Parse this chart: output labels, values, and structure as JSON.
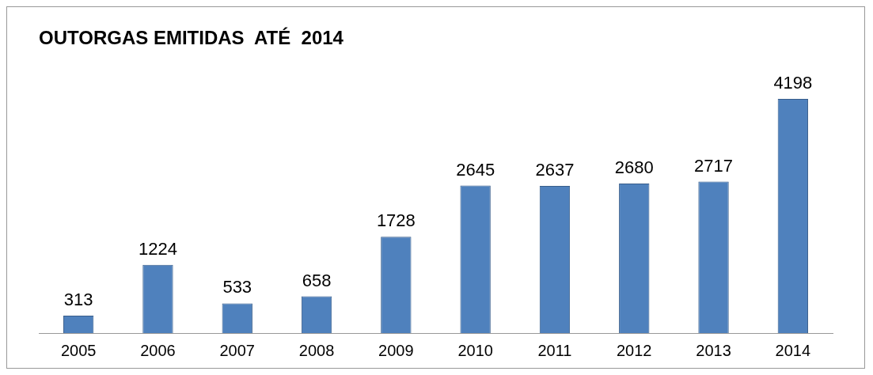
{
  "chart_data": {
    "type": "bar",
    "title": "OUTORGAS EMITIDAS  ATÉ  2014",
    "categories": [
      "2005",
      "2006",
      "2007",
      "2008",
      "2009",
      "2010",
      "2011",
      "2012",
      "2013",
      "2014"
    ],
    "values": [
      313,
      1224,
      533,
      658,
      1728,
      2645,
      2637,
      2680,
      2717,
      4198
    ],
    "color": "#4f81bd",
    "data_labels": true,
    "grid": false,
    "legend": false
  }
}
